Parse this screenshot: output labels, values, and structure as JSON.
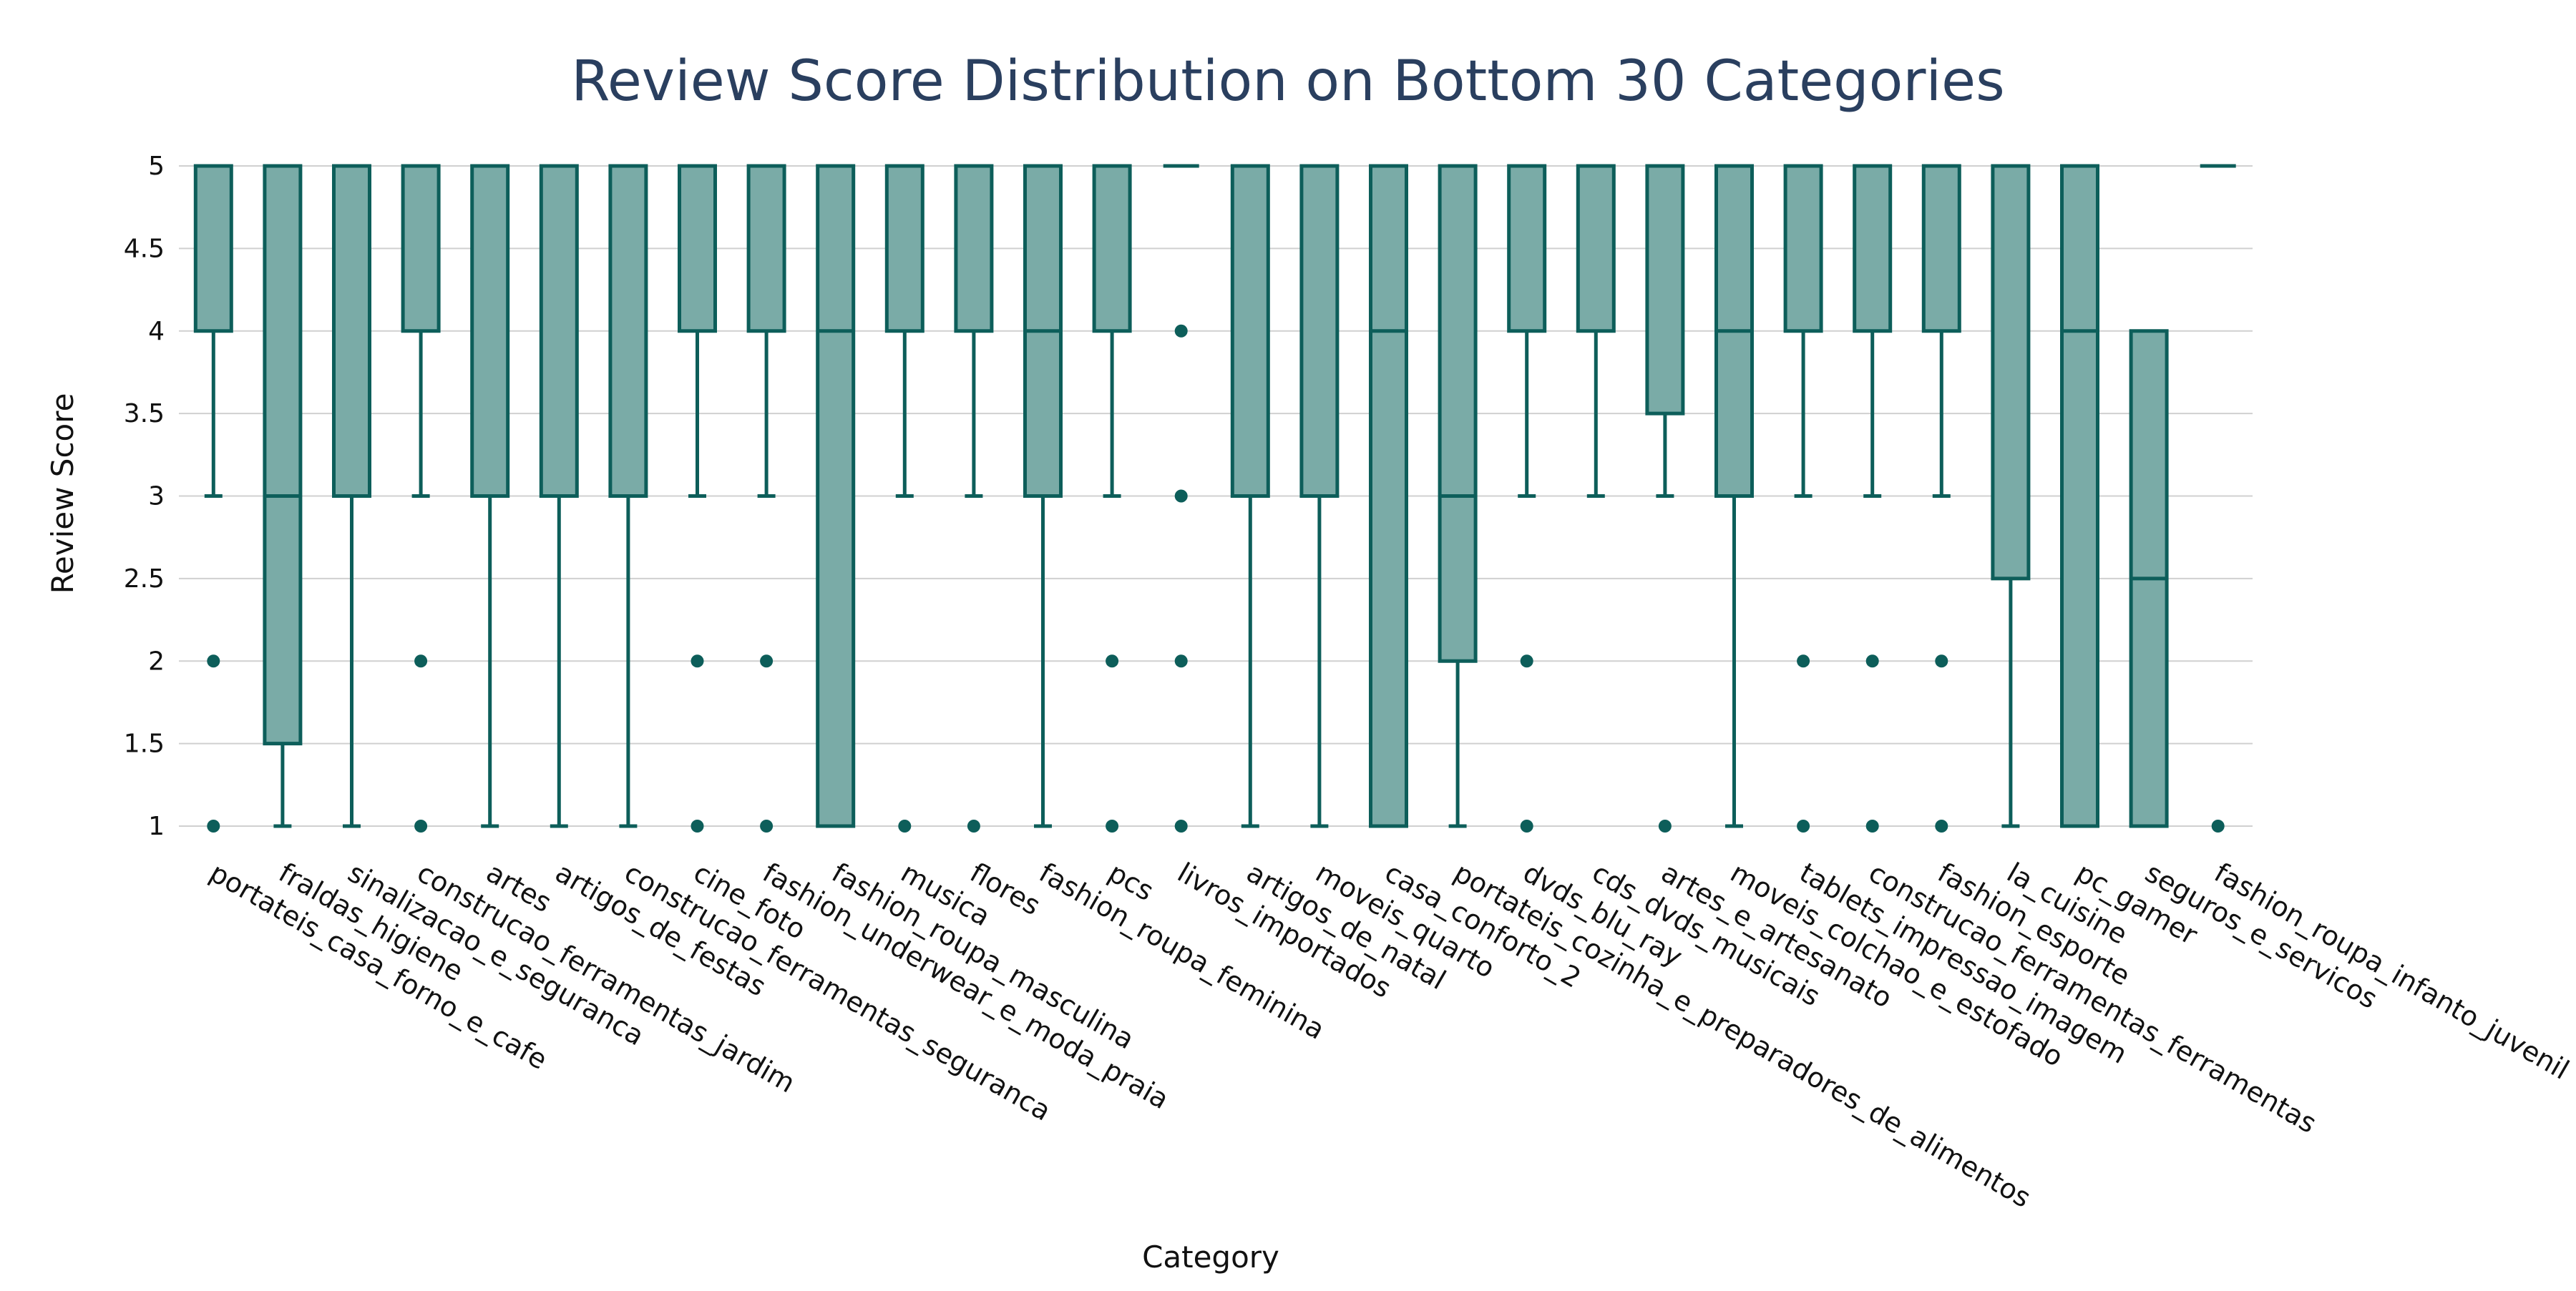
{
  "chart_data": {
    "type": "box",
    "title": "Review Score Distribution on Bottom 30 Categories",
    "xlabel": "Category",
    "ylabel": "Review Score",
    "ylim": [
      1,
      5
    ],
    "yticks": [
      "1",
      "1.5",
      "2",
      "2.5",
      "3",
      "3.5",
      "4",
      "4.5",
      "5"
    ],
    "grid": true,
    "colors": {
      "box_fill": "#7aaba7",
      "box_line": "#0d5e5a",
      "title": "#2a3f5f",
      "grid": "#d0d0d0"
    },
    "categories": [
      "portateis_casa_forno_e_cafe",
      "fraldas_higiene",
      "sinalizacao_e_seguranca",
      "construcao_ferramentas_jardim",
      "artes",
      "artigos_de_festas",
      "construcao_ferramentas_seguranca",
      "cine_foto",
      "fashion_underwear_e_moda_praia",
      "fashion_roupa_masculina",
      "musica",
      "flores",
      "fashion_roupa_feminina",
      "pcs",
      "livros_importados",
      "artigos_de_natal",
      "moveis_quarto",
      "casa_conforto_2",
      "portateis_cozinha_e_preparadores_de_alimentos",
      "dvds_blu_ray",
      "cds_dvds_musicais",
      "artes_e_artesanato",
      "moveis_colchao_e_estofado",
      "tablets_impressao_imagem",
      "construcao_ferramentas_ferramentas",
      "fashion_esporte",
      "la_cuisine",
      "pc_gamer",
      "seguros_e_servicos",
      "fashion_roupa_infanto_juvenil"
    ],
    "boxes": [
      {
        "q1": 4,
        "median": 5,
        "q3": 5,
        "lower": 3,
        "upper": 5,
        "outliers": [
          2,
          1
        ]
      },
      {
        "q1": 1.5,
        "median": 3,
        "q3": 5,
        "lower": 1,
        "upper": 5,
        "outliers": []
      },
      {
        "q1": 3,
        "median": 5,
        "q3": 5,
        "lower": 1,
        "upper": 5,
        "outliers": []
      },
      {
        "q1": 4,
        "median": 5,
        "q3": 5,
        "lower": 3,
        "upper": 5,
        "outliers": [
          2,
          1
        ]
      },
      {
        "q1": 3,
        "median": 5,
        "q3": 5,
        "lower": 1,
        "upper": 5,
        "outliers": []
      },
      {
        "q1": 3,
        "median": 5,
        "q3": 5,
        "lower": 1,
        "upper": 5,
        "outliers": []
      },
      {
        "q1": 3,
        "median": 5,
        "q3": 5,
        "lower": 1,
        "upper": 5,
        "outliers": []
      },
      {
        "q1": 4,
        "median": 5,
        "q3": 5,
        "lower": 3,
        "upper": 5,
        "outliers": [
          2,
          1
        ]
      },
      {
        "q1": 4,
        "median": 5,
        "q3": 5,
        "lower": 3,
        "upper": 5,
        "outliers": [
          2,
          1
        ]
      },
      {
        "q1": 1,
        "median": 4,
        "q3": 5,
        "lower": 1,
        "upper": 5,
        "outliers": []
      },
      {
        "q1": 4,
        "median": 5,
        "q3": 5,
        "lower": 3,
        "upper": 5,
        "outliers": [
          1
        ]
      },
      {
        "q1": 4,
        "median": 5,
        "q3": 5,
        "lower": 3,
        "upper": 5,
        "outliers": [
          1
        ]
      },
      {
        "q1": 3,
        "median": 4,
        "q3": 5,
        "lower": 1,
        "upper": 5,
        "outliers": []
      },
      {
        "q1": 4,
        "median": 5,
        "q3": 5,
        "lower": 3,
        "upper": 5,
        "outliers": [
          2,
          1
        ]
      },
      {
        "q1": 5,
        "median": 5,
        "q3": 5,
        "lower": 5,
        "upper": 5,
        "outliers": [
          4,
          3,
          2,
          1
        ]
      },
      {
        "q1": 3,
        "median": 5,
        "q3": 5,
        "lower": 1,
        "upper": 5,
        "outliers": []
      },
      {
        "q1": 3,
        "median": 5,
        "q3": 5,
        "lower": 1,
        "upper": 5,
        "outliers": []
      },
      {
        "q1": 1,
        "median": 4,
        "q3": 5,
        "lower": 1,
        "upper": 5,
        "outliers": []
      },
      {
        "q1": 2,
        "median": 3,
        "q3": 5,
        "lower": 1,
        "upper": 5,
        "outliers": []
      },
      {
        "q1": 4,
        "median": 5,
        "q3": 5,
        "lower": 3,
        "upper": 5,
        "outliers": [
          2,
          1
        ]
      },
      {
        "q1": 4,
        "median": 5,
        "q3": 5,
        "lower": 3,
        "upper": 5,
        "outliers": []
      },
      {
        "q1": 3.5,
        "median": 5,
        "q3": 5,
        "lower": 3,
        "upper": 5,
        "outliers": [
          1
        ]
      },
      {
        "q1": 3,
        "median": 4,
        "q3": 5,
        "lower": 1,
        "upper": 5,
        "outliers": []
      },
      {
        "q1": 4,
        "median": 5,
        "q3": 5,
        "lower": 3,
        "upper": 5,
        "outliers": [
          2,
          1
        ]
      },
      {
        "q1": 4,
        "median": 5,
        "q3": 5,
        "lower": 3,
        "upper": 5,
        "outliers": [
          2,
          1
        ]
      },
      {
        "q1": 4,
        "median": 5,
        "q3": 5,
        "lower": 3,
        "upper": 5,
        "outliers": [
          2,
          1
        ]
      },
      {
        "q1": 2.5,
        "median": 5,
        "q3": 5,
        "lower": 1,
        "upper": 5,
        "outliers": []
      },
      {
        "q1": 1,
        "median": 4,
        "q3": 5,
        "lower": 1,
        "upper": 5,
        "outliers": []
      },
      {
        "q1": 1,
        "median": 2.5,
        "q3": 4,
        "lower": 1,
        "upper": 4,
        "outliers": []
      },
      {
        "q1": 5,
        "median": 5,
        "q3": 5,
        "lower": 5,
        "upper": 5,
        "outliers": [
          1
        ]
      }
    ]
  }
}
